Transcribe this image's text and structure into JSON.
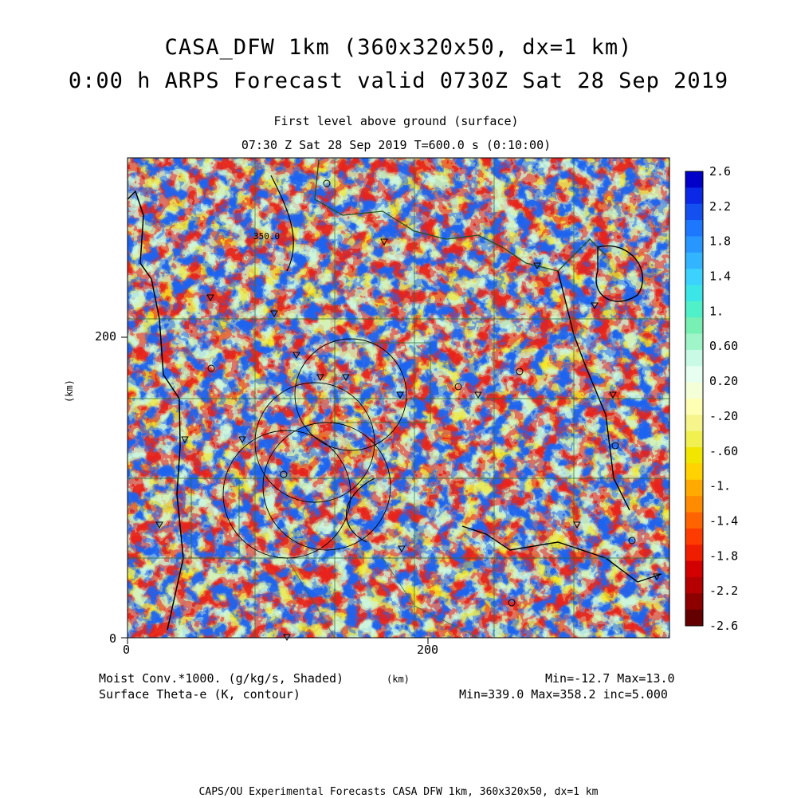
{
  "title": {
    "line1": "CASA_DFW 1km (360x320x50, dx=1 km)",
    "line2": "0:00 h ARPS Forecast valid 0730Z Sat 28 Sep 2019"
  },
  "subtitle": {
    "line1": "First level above ground (surface)",
    "line2": "07:30 Z Sat 28 Sep 2019    T=600.0 s (0:10:00)"
  },
  "axes": {
    "x_ticks": [
      "0",
      "200"
    ],
    "y_ticks": [
      "0",
      "200"
    ],
    "x_unit": "(km)",
    "y_unit": "(km)"
  },
  "contour_label": "350.0",
  "colorbar": {
    "labels": [
      "2.6",
      "2.2",
      "1.8",
      "1.4",
      "1.",
      "0.60",
      "0.20",
      "-.20",
      "-.60",
      "-1.",
      "-1.4",
      "-1.8",
      "-2.2",
      "-2.6"
    ],
    "colors": [
      "#0000c8",
      "#0a28e6",
      "#1450f0",
      "#1e78ff",
      "#2896ff",
      "#32b4ff",
      "#3cd2ff",
      "#3ce6e6",
      "#50f0c8",
      "#78f0b4",
      "#a0f5c8",
      "#c8fae6",
      "#e6fff0",
      "#f5ffd7",
      "#ffffb4",
      "#f5f58c",
      "#f0f050",
      "#f0e600",
      "#ffd200",
      "#ffaa00",
      "#ff8c00",
      "#ff6400",
      "#ff3c00",
      "#f01e00",
      "#d20000",
      "#b40000",
      "#8c0000",
      "#640000"
    ]
  },
  "legend": {
    "shaded": "Moist Conv.*1000. (g/kg/s, Shaded)",
    "contour": "Surface Theta-e (K, contour)",
    "shaded_minmax": "Min=-12.7 Max=13.0",
    "contour_minmax": "Min=339.0 Max=358.2 inc=5.000"
  },
  "footer": "CAPS/OU Experimental Forecasts  CASA DFW 1km, 360x320x50, dx=1 km"
}
